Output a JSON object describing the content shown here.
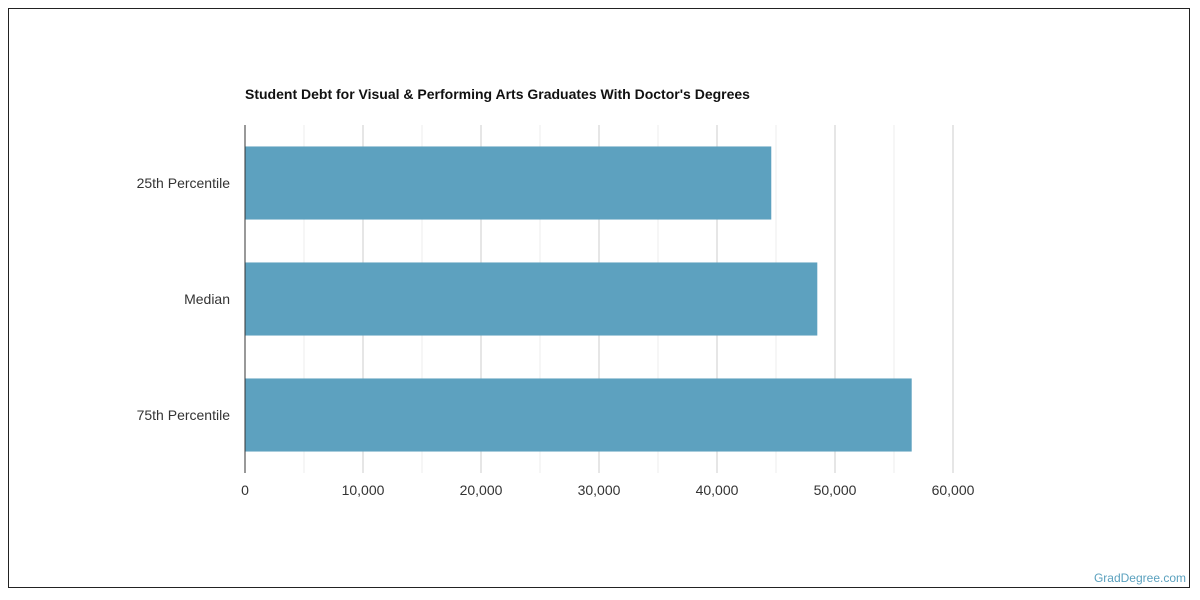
{
  "chart_data": {
    "type": "bar",
    "orientation": "horizontal",
    "title": "Student Debt for Visual & Performing Arts Graduates With Doctor's Degrees",
    "categories": [
      "25th Percentile",
      "Median",
      "75th Percentile"
    ],
    "values": [
      44600,
      48500,
      56500
    ],
    "xlim": [
      0,
      60000
    ],
    "xticks": [
      "0",
      "10,000",
      "20,000",
      "30,000",
      "40,000",
      "50,000",
      "60,000"
    ],
    "grid": true,
    "bar_color": "#5da1bf"
  },
  "footer": {
    "watermark": "GradDegree.com"
  }
}
